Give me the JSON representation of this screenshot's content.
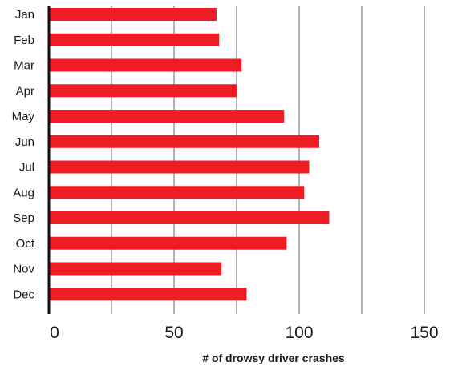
{
  "chart_data": {
    "type": "bar",
    "orientation": "horizontal",
    "categories": [
      "Jan",
      "Feb",
      "Mar",
      "Apr",
      "May",
      "Jun",
      "Jul",
      "Aug",
      "Sep",
      "Oct",
      "Nov",
      "Dec"
    ],
    "values": [
      67,
      68,
      77,
      75,
      94,
      108,
      104,
      102,
      112,
      95,
      69,
      79
    ],
    "xlabel": "# of drowsy driver crashes",
    "ylabel": "",
    "title": "",
    "xlim": [
      0,
      150
    ],
    "xticks": [
      0,
      50,
      100,
      150
    ],
    "grid": "vertical",
    "legend": "none",
    "bar_color": "#ee1c25",
    "grid_color": "#b3b3b3"
  }
}
